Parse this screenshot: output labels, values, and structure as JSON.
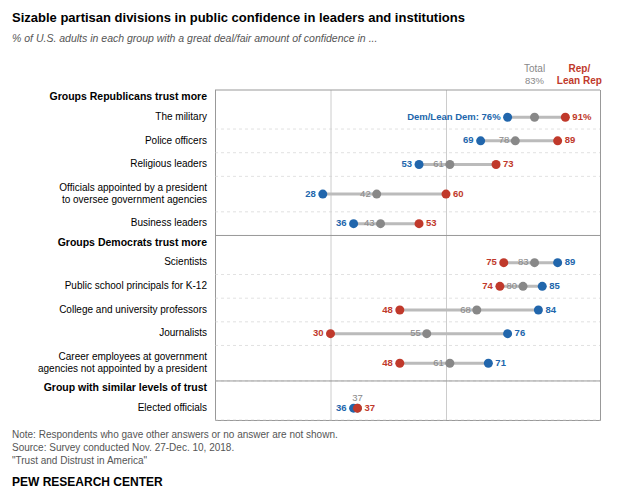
{
  "chart_data": {
    "type": "dot",
    "title": "Sizable partisan divisions in public confidence in leaders and institutions",
    "subtitle": "% of U.S. adults in each group with a great deal/fair amount of confidence in ...",
    "groups": [
      {
        "label": "Groups Republicans trust more",
        "categories": [
          "The military",
          "Police officers",
          "Religious leaders",
          "Officials appointed by a president\nto oversee government agencies",
          "Business leaders"
        ]
      },
      {
        "label": "Groups Democrats trust more",
        "categories": [
          "Scientists",
          "Public school principals for K-12",
          "College and university professors",
          "Journalists",
          "Career employees at government\nagencies not appointed by a president"
        ]
      },
      {
        "label": "Group with similar levels of trust",
        "categories": [
          "Elected officials"
        ]
      }
    ],
    "series": [
      {
        "color": "#2166ac",
        "values": [
          76,
          69,
          53,
          28,
          36,
          89,
          85,
          84,
          76,
          71,
          36
        ],
        "value_labels": [
          "Dem/Lean Dem: 76%",
          "69",
          "53",
          "28",
          "36",
          "89",
          "85",
          "84",
          "76",
          "71",
          "36"
        ]
      },
      {
        "name": "Total",
        "color": "#888888",
        "values": [
          83,
          78,
          61,
          42,
          43,
          83,
          80,
          68,
          55,
          61,
          37
        ],
        "value_labels": [
          "83%",
          "78",
          "61",
          "42",
          "43",
          "83",
          "80",
          "68",
          "55",
          "61",
          "37"
        ]
      },
      {
        "name": "Rep/Lean Rep",
        "color": "#c0392b",
        "values": [
          91,
          89,
          73,
          60,
          53,
          75,
          74,
          48,
          30,
          48,
          37
        ],
        "value_labels": [
          "91%",
          "89",
          "73",
          "60",
          "53",
          "75",
          "74",
          "48",
          "30",
          "48",
          "37"
        ]
      }
    ],
    "xlim": [
      0,
      100
    ],
    "xticks": [
      30,
      60
    ],
    "grid": true,
    "tick_labels": false,
    "data_labels": true,
    "footnotes": [
      "Note: Respondents who gave other answers or no answer are not shown.",
      "Source: Survey conducted Nov. 27-Dec. 10, 2018.",
      "\"Trust and Distrust in America\""
    ],
    "credit": "PEW RESEARCH CENTER"
  }
}
